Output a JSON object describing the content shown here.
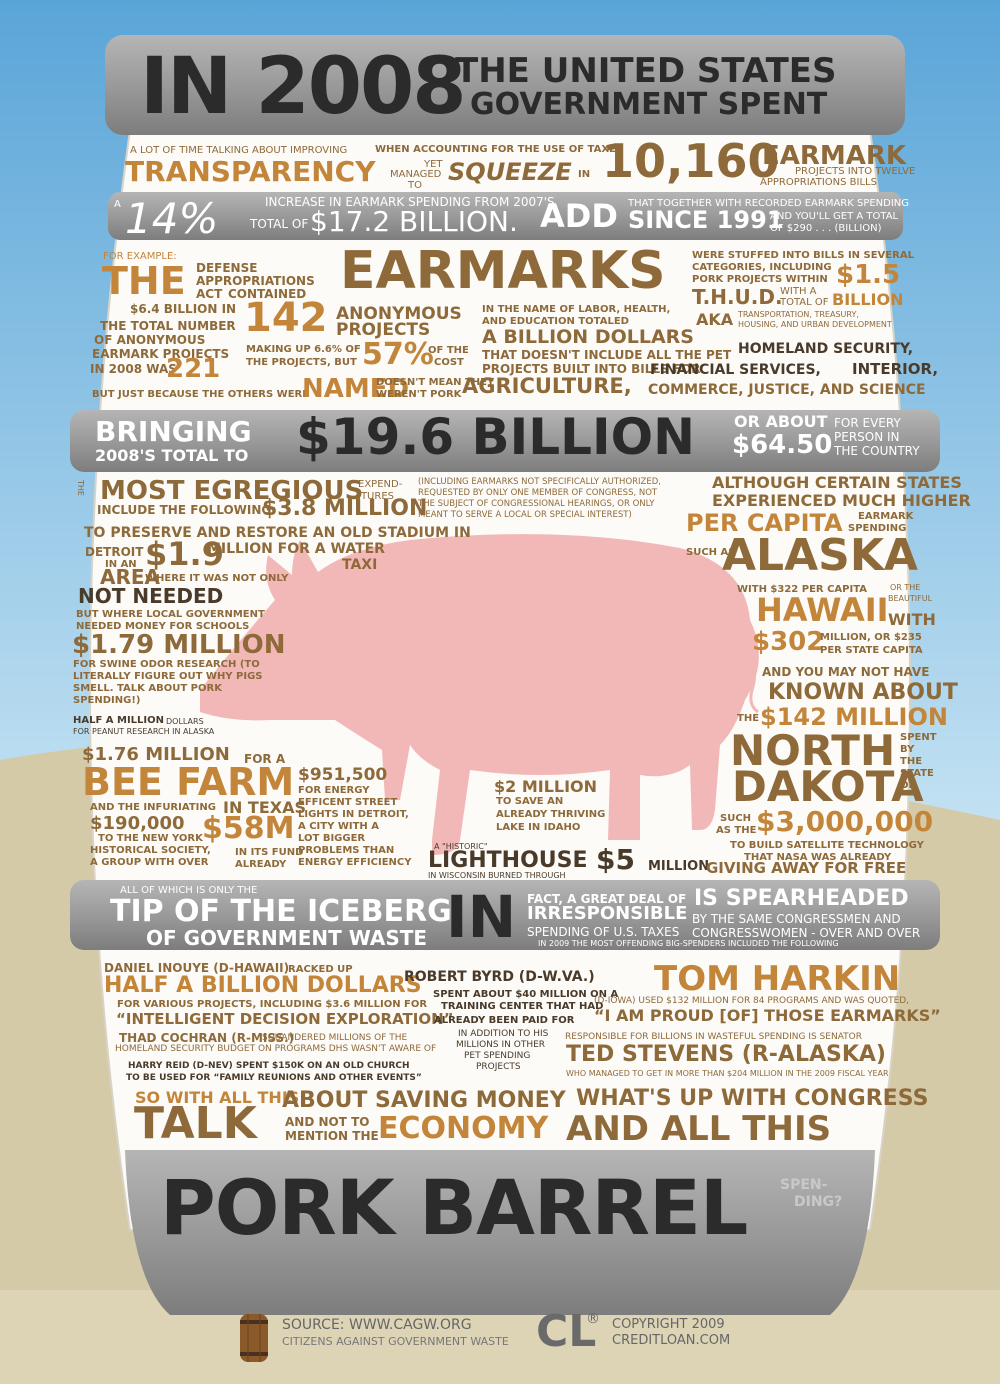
{
  "colors": {
    "sky": "#5aa5d8",
    "ground": "#d4caa8",
    "barrel_gray": "#9a9a9a",
    "pig": "#f2b8b8",
    "accent": "#c2853a",
    "brown": "#8e6a3a"
  },
  "header": {
    "year_label": "IN 2008",
    "line1": "THE UNITED STATES",
    "line2": "GOVERNMENT SPENT"
  },
  "r1": {
    "intro": "A LOT OF TIME TALKING ABOUT IMPROVING",
    "transparency": "TRANSPARENCY",
    "accounting": "WHEN ACCOUNTING FOR THE USE OF TAXES",
    "yet": "YET",
    "managed": "MANAGED",
    "to": "TO",
    "squeeze": "SQUEEZE",
    "in": "IN",
    "count": "10,160",
    "earmark": "EARMARK",
    "projects": "PROJECTS INTO TWELVE",
    "bills": "APPROPRIATIONS BILLS"
  },
  "r2": {
    "a": "A",
    "pct": "14%",
    "increase": "INCREASE IN EARMARK SPENDING FROM 2007'S",
    "total_of": "TOTAL OF",
    "amount": "$17.2 BILLION.",
    "add": "ADD",
    "together": "THAT TOGETHER WITH RECORDED EARMARK SPENDING",
    "since": "SINCE 1991",
    "youll": "AND YOU'LL GET A TOTAL",
    "of290": "OF $290 . . . (BILLION)"
  },
  "r3": {
    "for_example": "FOR EXAMPLE:",
    "the": "THE",
    "defense": "DEFENSE",
    "appropriations": "APPROPRIATIONS",
    "act": "ACT",
    "contained": "CONTAINED",
    "six4": "$6.4 BILLION IN",
    "n142": "142",
    "anonymous": "ANONYMOUS",
    "projects": "PROJECTS",
    "total_number": "THE TOTAL NUMBER",
    "of_anonymous": "OF ANONYMOUS",
    "earmark_projects": "EARMARK PROJECTS",
    "in2008": "IN 2008 WAS",
    "n221": "221",
    "making_up": "MAKING UP 6.6% OF",
    "the_projects": "THE PROJECTS, BUT",
    "p57": "57%",
    "of_the": "OF THE",
    "cost": "COST",
    "just_because": "BUT JUST BECAUSE THE OTHERS WERE",
    "named": "NAMED",
    "doesnt": "DOESN'T MEAN THEY",
    "werent": "WEREN'T PORK",
    "earmarks": "EARMARKS",
    "labor1": "IN THE NAME OF LABOR, HEALTH,",
    "labor2": "AND EDUCATION TOTALED",
    "billion_dollars": "A BILLION DOLLARS",
    "pet1": "THAT DOESN'T INCLUDE ALL THE PET",
    "pet2": "PROJECTS BUILT INTO BILLS FOR",
    "agriculture": "AGRICULTURE,",
    "commerce": "COMMERCE, JUSTICE, AND SCIENCE",
    "stuffed1": "WERE STUFFED INTO BILLS IN SEVERAL",
    "stuffed2": "CATEGORIES, INCLUDING",
    "stuffed3": "PORK PROJECTS WITHIN",
    "thud": "T.H.U.D.",
    "with_a": "WITH A",
    "total_of": "TOTAL OF",
    "d15": "$1.5",
    "billion": "BILLION",
    "aka": "AKA",
    "transport1": "TRANSPORTATION, TREASURY,",
    "transport2": "HOUSING, AND URBAN DEVELOPMENT",
    "homeland": "HOMELAND SECURITY,",
    "financial": "FINANCIAL SERVICES,",
    "interior": "INTERIOR,"
  },
  "r4": {
    "bringing": "BRINGING",
    "total_to": "2008'S TOTAL TO",
    "amount": "$19.6 BILLION",
    "or_about": "OR ABOUT",
    "per": "$64.50",
    "for_every": "FOR EVERY",
    "person_in": "PERSON IN",
    "the_country": "THE COUNTRY"
  },
  "r5": {
    "the": "THE",
    "most_egregious": "MOST EGREGIOUS",
    "expend": "EXPEND-",
    "itures": "ITURES",
    "include": "INCLUDE THE FOLLOWING:",
    "d38": "$3.8 MILLION",
    "paren1": "(INCLUDING EARMARKS NOT SPECIFICALLY AUTHORIZED,",
    "paren2": "REQUESTED BY ONLY ONE MEMBER OF CONGRESS, NOT",
    "paren3": "THE SUBJECT OF CONGRESSIONAL HEARINGS, OR ONLY",
    "paren4": "MEANT TO SERVE A LOCAL OR SPECIAL INTEREST)",
    "preserve": "TO PRESERVE AND RESTORE AN OLD STADIUM IN",
    "detroit": "DETROIT",
    "d19": "$1.9",
    "million_water": "MILLION FOR A WATER",
    "taxi": "TAXI",
    "in_an": "IN AN",
    "area": "AREA",
    "where_not": "WHERE IT WAS NOT ONLY",
    "not_needed": "NOT NEEDED",
    "local1": "BUT WHERE LOCAL GOVERNMENT",
    "local2": "NEEDED MONEY FOR SCHOOLS",
    "d179": "$1.79 MILLION",
    "swine1": "FOR SWINE ODOR RESEARCH (TO",
    "swine2": "LITERALLY FIGURE OUT WHY PIGS",
    "swine3": "SMELL. TALK ABOUT PORK",
    "swine4": "SPENDING!)",
    "half": "HALF A MILLION",
    "dollars": "DOLLARS",
    "peanut": "FOR PEANUT RESEARCH IN ALASKA",
    "d176": "$1.76 MILLION",
    "for_a": "FOR A",
    "bee_farm": "BEE FARM",
    "in_texas": "IN TEXAS",
    "infuriating": "AND THE INFURIATING",
    "d190": "$190,000",
    "ny1": "TO THE NEW YORK",
    "ny2": "HISTORICAL SOCIETY,",
    "ny3": "A GROUP WITH OVER",
    "d58": "$58M",
    "in_its": "IN ITS FUND",
    "already": "ALREADY",
    "d951": "$951,500",
    "energy1": "FOR ENERGY",
    "energy2": "EFFICENT STREET",
    "energy3": "LIGHTS IN DETROIT,",
    "energy4": "A CITY WITH A",
    "energy5": "LOT BIGGER",
    "energy6": "PROBLEMS THAN",
    "energy7": "ENERGY EFFICIENCY",
    "d2m": "$2 MILLION",
    "lake1": "TO SAVE AN",
    "lake2": "ALREADY THRIVING",
    "lake3": "LAKE IN IDAHO",
    "a_historic": "A \"HISTORIC\"",
    "lighthouse": "LIGHTHOUSE",
    "wisconsin": "IN WISCONSIN BURNED THROUGH",
    "d5": "$5",
    "million": "MILLION",
    "although1": "ALTHOUGH CERTAIN STATES",
    "although2": "EXPERIENCED MUCH HIGHER",
    "per_capita": "PER CAPITA",
    "earmark": "EARMARK",
    "spending": "SPENDING",
    "such_as": "SUCH AS",
    "alaska": "ALASKA",
    "with322": "WITH $322 PER CAPITA",
    "or_the": "OR THE",
    "beautiful": "BEAUTIFUL",
    "hawaii": "HAWAII",
    "with": "WITH",
    "d302": "$302",
    "million235": "MILLION, OR $235",
    "per_state": "PER STATE CAPITA",
    "may_not": "AND YOU MAY NOT HAVE",
    "known": "KNOWN ABOUT",
    "the2": "THE",
    "d142": "$142 MILLION",
    "north": "NORTH",
    "dakota": "DAKOTA",
    "spent": "SPENT",
    "by": "BY",
    "the_state": "THE",
    "state": "STATE",
    "of": "OF",
    "such_as2": "SUCH",
    "as_the": "AS THE",
    "d3m": "$3,000,000",
    "satellite1": "TO BUILD SATELLITE TECHNOLOGY",
    "satellite2": "THAT NASA WAS ALREADY",
    "giving": "GIVING AWAY FOR FREE"
  },
  "r6": {
    "all_of": "ALL OF WHICH IS ONLY THE",
    "tip": "TIP OF THE ICEBERG",
    "of_gov": "OF GOVERNMENT WASTE",
    "in": "IN",
    "fact": "FACT, A GREAT DEAL OF",
    "irresponsible": "IRRESPONSIBLE",
    "spending": "SPENDING OF U.S. TAXES",
    "is_spear": "IS SPEARHEADED",
    "by_same": "BY THE SAME CONGRESSMEN AND",
    "congresswomen": "CONGRESSWOMEN - OVER AND OVER",
    "in2009": "IN 2009 THE MOST OFFENDING BIG-SPENDERS INCLUDED THE FOLLOWING"
  },
  "r7": {
    "inouye": "DANIEL INOUYE (D-HAWAII)",
    "racked": "RACKED UP",
    "half_billion": "HALF A BILLION DOLLARS",
    "various": "FOR VARIOUS PROJECTS, INCLUDING $3.6 MILLION FOR",
    "intelligent": "“INTELLIGENT DECISION EXPLORATION”",
    "cochran": "THAD COCHRAN (R-MISS.)",
    "squandered": "SQUANDERED MILLIONS OF THE",
    "homeland": "HOMELAND SECURITY BUDGET ON PROGRAMS DHS WASN'T AWARE OF",
    "reid": "HARRY REID (D-NEV) SPENT $150K ON AN OLD CHURCH",
    "family": "TO BE USED FOR “FAMILY REUNIONS AND OTHER EVENTS”",
    "byrd": "ROBERT BYRD (D-W.VA.)",
    "byrd1": "SPENT ABOUT $40 MILLION ON A",
    "byrd2": "TRAINING CENTER THAT HAD",
    "byrd3": "ALREADY BEEN PAID FOR",
    "byrd4": "IN ADDITION TO HIS",
    "byrd5": "MILLIONS IN OTHER",
    "byrd6": "PET SPENDING",
    "byrd7": "PROJECTS",
    "harkin": "TOM HARKIN",
    "harkin1": "(D-IOWA) USED $132 MILLION FOR 84 PROGRAMS AND WAS QUOTED,",
    "proud": "“I AM PROUD [OF] THOSE EARMARKS”",
    "responsible": "RESPONSIBLE FOR BILLIONS IN WASTEFUL SPENDING IS SENATOR",
    "stevens": "TED STEVENS (R-ALASKA)",
    "stevens1": "WHO MANAGED TO GET IN MORE THAN $204 MILLION IN THE 2009 FISCAL YEAR",
    "so_with": "SO WITH ALL THIS",
    "talk": "TALK",
    "about_saving": "ABOUT SAVING MONEY",
    "and_not": "AND NOT TO",
    "mention": "MENTION THE",
    "economy": "ECONOMY",
    "whats_up": "WHAT'S UP WITH CONGRESS",
    "and_all": "AND ALL THIS"
  },
  "bottom": {
    "pork_barrel": "PORK BARREL",
    "spen": "SPEN-",
    "ding": "DING?"
  },
  "footer": {
    "source": "SOURCE: WWW.CAGW.ORG",
    "citizens": "CITIZENS AGAINST GOVERNMENT WASTE",
    "logo": "CL",
    "reg": "®",
    "copyright": "COPYRIGHT 2009",
    "creditloan": "CREDITLOAN.COM"
  }
}
